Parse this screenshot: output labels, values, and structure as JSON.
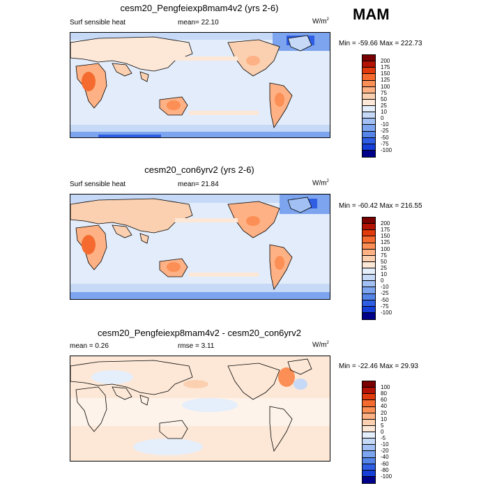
{
  "season": "MAM",
  "units": "W/m",
  "units_sup": "2",
  "panels": [
    {
      "title": "cesm20_Pengfeiexp8mam4v2 (yrs 2-6)",
      "left_label": "Surf sensible heat",
      "center_label": "mean=  22.10",
      "minmax": "Min = -59.66 Max = 222.73",
      "colorbar_labels": [
        "200",
        "175",
        "150",
        "125",
        "100",
        "75",
        "50",
        "25",
        "10",
        "0",
        "-10",
        "-25",
        "-50",
        "-75",
        "-100"
      ],
      "colorbar_colors": [
        "#7a0000",
        "#b31204",
        "#e13a0c",
        "#f56a2e",
        "#fb8f55",
        "#fdb184",
        "#fbd0b0",
        "#fde8d7",
        "#e5eefb",
        "#c6d9f7",
        "#a2c0f3",
        "#7da5ef",
        "#5685ea",
        "#2f5ee4",
        "#163ed8",
        "#00008b"
      ]
    },
    {
      "title": "cesm20_con6yrv2 (yrs 2-6)",
      "left_label": "Surf sensible heat",
      "center_label": "mean=  21.84",
      "minmax": "Min = -60.42 Max = 216.55",
      "colorbar_labels": [
        "200",
        "175",
        "150",
        "125",
        "100",
        "75",
        "50",
        "25",
        "10",
        "0",
        "-10",
        "-25",
        "-50",
        "-75",
        "-100"
      ],
      "colorbar_colors": [
        "#7a0000",
        "#b31204",
        "#e13a0c",
        "#f56a2e",
        "#fb8f55",
        "#fdb184",
        "#fbd0b0",
        "#fde8d7",
        "#e5eefb",
        "#c6d9f7",
        "#a2c0f3",
        "#7da5ef",
        "#5685ea",
        "#2f5ee4",
        "#163ed8",
        "#00008b"
      ]
    },
    {
      "title": "cesm20_Pengfeiexp8mam4v2 - cesm20_con6yrv2",
      "left_label": "mean =   0.26",
      "center_label": "rmse =   3.11",
      "minmax": "Min = -22.46 Max =  29.93",
      "colorbar_labels": [
        "100",
        "80",
        "60",
        "40",
        "20",
        "10",
        "5",
        "0",
        "-5",
        "-10",
        "-20",
        "-40",
        "-60",
        "-80",
        "-100"
      ],
      "colorbar_colors": [
        "#7a0000",
        "#b31204",
        "#e13a0c",
        "#f56a2e",
        "#fb8f55",
        "#fdb184",
        "#fbd0b0",
        "#fde8d7",
        "#e5eefb",
        "#c6d9f7",
        "#a2c0f3",
        "#7da5ef",
        "#5685ea",
        "#2f5ee4",
        "#163ed8",
        "#00008b"
      ]
    }
  ]
}
